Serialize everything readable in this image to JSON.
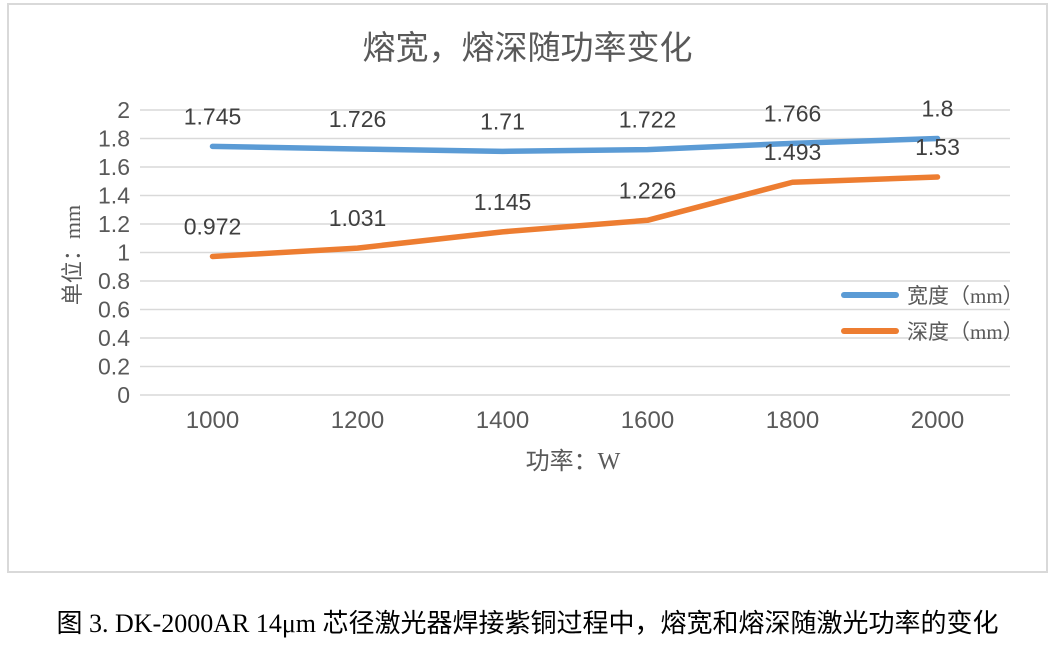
{
  "chart_data": {
    "type": "line",
    "title": "熔宽，熔深随功率变化",
    "categories": [
      "1000",
      "1200",
      "1400",
      "1600",
      "1800",
      "2000"
    ],
    "series": [
      {
        "name": "宽度（mm）",
        "color": "#5B9BD5",
        "values": [
          1.745,
          1.726,
          1.71,
          1.722,
          1.766,
          1.8
        ]
      },
      {
        "name": "深度（mm）",
        "color": "#ED7D31",
        "values": [
          0.972,
          1.031,
          1.145,
          1.226,
          1.493,
          1.53
        ]
      }
    ],
    "xlabel": "功率：W",
    "ylabel": "单位：mm",
    "ylim": [
      0,
      2
    ],
    "ytick_step": 0.2,
    "yticks": [
      "2",
      "1.8",
      "1.6",
      "1.4",
      "1.2",
      "1",
      "0.8",
      "0.6",
      "0.4",
      "0.2",
      "0"
    ],
    "grid": "horizontal-only",
    "legend_position": "inside-right",
    "data_labels": "above-points"
  },
  "caption": "图 3. DK-2000AR 14μm 芯径激光器焊接紫铜过程中，熔宽和熔深随激光功率的变化",
  "colors": {
    "frame_border": "#d9d9d9",
    "gridline": "#d9d9d9",
    "tick_text": "#595959",
    "axis_title_text": "#595959",
    "title_text": "#595959",
    "data_label_text": "#3f3f3f",
    "legend_text": "#595959",
    "caption_text": "#000000"
  }
}
